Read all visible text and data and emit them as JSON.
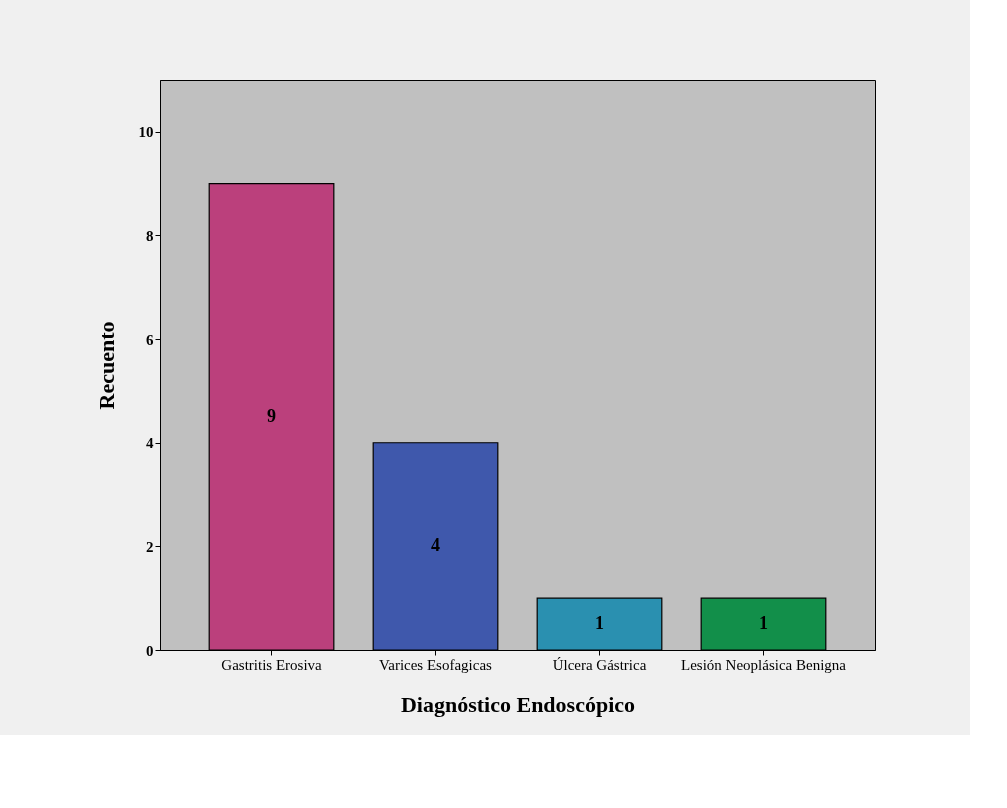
{
  "chart_data": {
    "type": "bar",
    "xlabel": "Diagnóstico Endoscópico",
    "ylabel": "Recuento",
    "categories": [
      "Gastritis Erosiva",
      "Varices Esofagicas",
      "Úlcera Gástrica",
      "Lesión Neoplásica Benigna"
    ],
    "values": [
      9,
      4,
      1,
      1
    ],
    "colors": [
      "#bb407c",
      "#3f58ac",
      "#2a90b0",
      "#128f4a"
    ],
    "ylim": [
      0,
      11
    ],
    "yticks": [
      0,
      2,
      4,
      6,
      8,
      10
    ],
    "grid": false,
    "data_labels": true
  }
}
